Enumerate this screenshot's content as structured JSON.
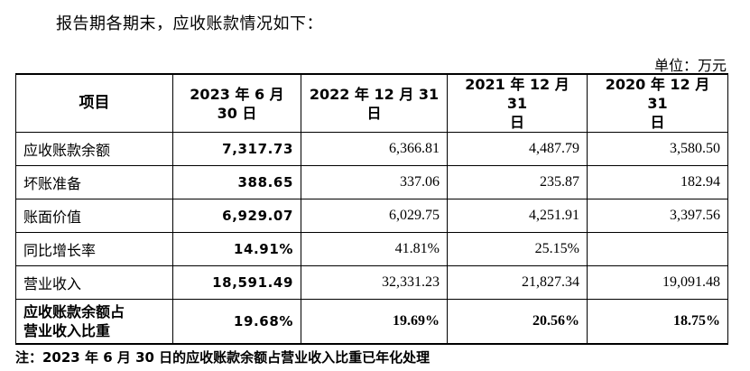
{
  "intro": "报告期各期末，应收账款情况如下：",
  "unit": "单位：万元",
  "table": {
    "headers": [
      "项目",
      "2023 年 6 月\n30 日",
      "2022 年 12 月 31\n日",
      "2021 年 12 月 31\n日",
      "2020 年 12 月 31\n日"
    ],
    "rows": [
      {
        "label": "应收账款余额",
        "values": [
          "7,317.73",
          "6,366.81",
          "4,487.79",
          "3,580.50"
        ]
      },
      {
        "label": "坏账准备",
        "values": [
          "388.65",
          "337.06",
          "235.87",
          "182.94"
        ]
      },
      {
        "label": "账面价值",
        "values": [
          "6,929.07",
          "6,029.75",
          "4,251.91",
          "3,397.56"
        ]
      },
      {
        "label": "同比增长率",
        "values": [
          "14.91%",
          "41.81%",
          "25.15%",
          ""
        ]
      },
      {
        "label": "营业收入",
        "values": [
          "18,591.49",
          "32,331.23",
          "21,827.34",
          "19,091.48"
        ]
      },
      {
        "label": "应收账款余额占\n营业收入比重",
        "values": [
          "19.68%",
          "19.69%",
          "20.56%",
          "18.75%"
        ]
      }
    ]
  },
  "note": "注：2023 年 6 月 30 日的应收账款余额占营业收入比重已年化处理"
}
